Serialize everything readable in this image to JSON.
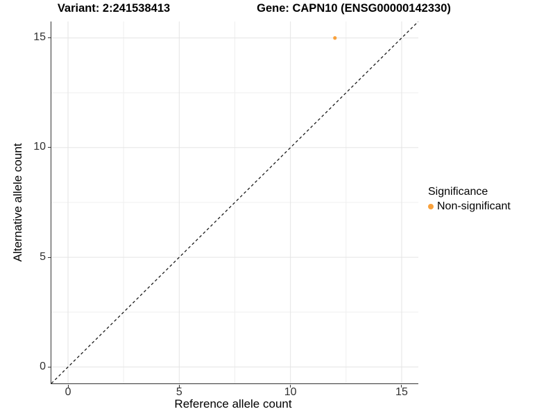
{
  "figure": {
    "background": "#ffffff",
    "axis_color": "#333333",
    "tick_label_color": "#303030"
  },
  "chart_data": {
    "type": "scatter",
    "title_left": "Variant: 2:241538413",
    "title_right": "Gene: CAPN10 (ENSG00000142330)",
    "xlabel": "Reference allele count",
    "ylabel": "Alternative allele count",
    "xlim": [
      -0.75,
      15.75
    ],
    "ylim": [
      -0.75,
      15.75
    ],
    "xticks": [
      {
        "value": 0,
        "label": "0"
      },
      {
        "value": 5,
        "label": "5"
      },
      {
        "value": 10,
        "label": "10"
      },
      {
        "value": 15,
        "label": "15"
      }
    ],
    "yticks": [
      {
        "value": 0,
        "label": "0"
      },
      {
        "value": 5,
        "label": "5"
      },
      {
        "value": 10,
        "label": "10"
      },
      {
        "value": 15,
        "label": "15"
      }
    ],
    "minor_ticks": [
      2.5,
      7.5,
      12.5
    ],
    "grid": {
      "major_color": "#e4e4e4",
      "minor_color": "#efefef"
    },
    "identity_line": {
      "style": "dashed",
      "color": "#1a1a1a",
      "from": [
        -0.75,
        -0.75
      ],
      "to": [
        15.75,
        15.75
      ]
    },
    "points": [
      {
        "x": 12,
        "y": 15,
        "series": "Non-significant",
        "color": "#F9A13C",
        "radius": 2.6
      }
    ],
    "legend": {
      "title": "Significance",
      "position": "right",
      "entries": [
        {
          "label": "Non-significant",
          "color": "#F9A13C"
        }
      ]
    }
  }
}
